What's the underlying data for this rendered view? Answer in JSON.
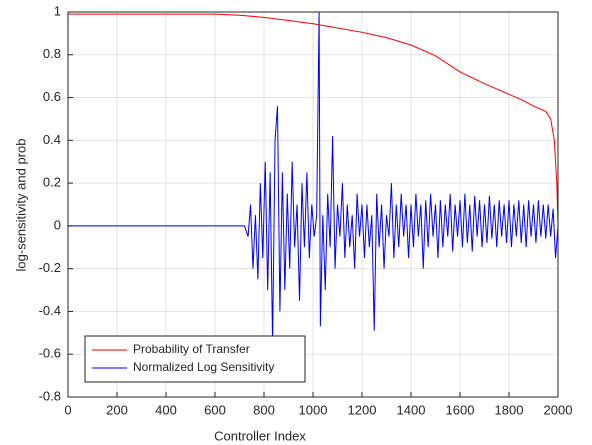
{
  "chart_data": {
    "type": "line",
    "xlabel": "Controller Index",
    "ylabel": "log-sensitivity and prob",
    "xlim": [
      0,
      2000
    ],
    "ylim": [
      -0.8,
      1
    ],
    "xticks": [
      0,
      200,
      400,
      600,
      800,
      1000,
      1200,
      1400,
      1600,
      1800,
      2000
    ],
    "yticks": [
      -0.8,
      -0.6,
      -0.4,
      -0.2,
      0,
      0.2,
      0.4,
      0.6,
      0.8,
      1
    ],
    "grid": true,
    "legend": "lower left",
    "series": [
      {
        "name": "Probability of Transfer",
        "color": "#ff0000",
        "x": [
          0,
          100,
          200,
          300,
          400,
          500,
          600,
          700,
          800,
          900,
          1000,
          1100,
          1200,
          1300,
          1400,
          1500,
          1600,
          1700,
          1800,
          1850,
          1900,
          1950,
          1970,
          1985,
          1995,
          2000
        ],
        "values": [
          0.99,
          0.99,
          0.99,
          0.99,
          0.99,
          0.99,
          0.99,
          0.985,
          0.975,
          0.96,
          0.945,
          0.925,
          0.905,
          0.88,
          0.845,
          0.795,
          0.72,
          0.665,
          0.615,
          0.59,
          0.56,
          0.535,
          0.5,
          0.4,
          0.2,
          0
        ]
      },
      {
        "name": "Normalized Log Sensitivity",
        "color": "#0000ff",
        "x": [
          0,
          720,
          735,
          745,
          755,
          765,
          775,
          785,
          795,
          805,
          815,
          825,
          835,
          845,
          855,
          865,
          875,
          885,
          895,
          905,
          915,
          925,
          935,
          945,
          955,
          965,
          975,
          985,
          995,
          1005,
          1015,
          1025,
          1030,
          1040,
          1050,
          1060,
          1070,
          1080,
          1090,
          1100,
          1110,
          1120,
          1130,
          1140,
          1150,
          1160,
          1170,
          1180,
          1190,
          1200,
          1210,
          1220,
          1230,
          1240,
          1250,
          1260,
          1270,
          1280,
          1290,
          1300,
          1310,
          1320,
          1330,
          1340,
          1350,
          1360,
          1370,
          1380,
          1390,
          1400,
          1410,
          1420,
          1430,
          1440,
          1450,
          1460,
          1470,
          1480,
          1490,
          1500,
          1510,
          1520,
          1530,
          1540,
          1550,
          1560,
          1570,
          1580,
          1590,
          1600,
          1610,
          1620,
          1630,
          1640,
          1650,
          1660,
          1670,
          1680,
          1690,
          1700,
          1710,
          1720,
          1730,
          1740,
          1750,
          1760,
          1770,
          1780,
          1790,
          1800,
          1810,
          1820,
          1830,
          1840,
          1850,
          1860,
          1870,
          1880,
          1890,
          1900,
          1910,
          1920,
          1930,
          1940,
          1950,
          1960,
          1970,
          1980,
          1990,
          2000
        ],
        "values": [
          0,
          0,
          -0.05,
          0.1,
          -0.2,
          0.05,
          -0.25,
          0.2,
          -0.15,
          0.3,
          -0.3,
          0.25,
          -0.55,
          0.4,
          0.56,
          -0.4,
          0.25,
          -0.3,
          0.15,
          -0.2,
          0.3,
          -0.1,
          0.1,
          -0.35,
          0.2,
          -0.1,
          0.25,
          -0.15,
          0.1,
          -0.05,
          0.05,
          1.0,
          -0.47,
          0.05,
          -0.3,
          0.15,
          -0.1,
          0.42,
          -0.2,
          0.1,
          -0.05,
          0.2,
          -0.15,
          0.1,
          -0.1,
          0.05,
          -0.2,
          0.15,
          -0.05,
          0.1,
          -0.15,
          0.1,
          -0.1,
          0.05,
          -0.49,
          0.15,
          -0.1,
          0.1,
          -0.2,
          0.05,
          -0.05,
          0.2,
          -0.15,
          0.1,
          -0.1,
          0.15,
          -0.05,
          0.1,
          -0.15,
          0.1,
          -0.1,
          0.15,
          -0.05,
          0.1,
          -0.2,
          0.12,
          -0.1,
          0.15,
          -0.05,
          0.1,
          -0.15,
          0.12,
          -0.1,
          0.1,
          -0.05,
          0.15,
          -0.12,
          0.1,
          -0.05,
          0.12,
          -0.1,
          0.15,
          -0.08,
          0.1,
          -0.12,
          0.14,
          -0.05,
          0.12,
          -0.1,
          0.1,
          -0.08,
          0.14,
          -0.06,
          0.1,
          -0.1,
          0.12,
          -0.05,
          0.1,
          -0.08,
          0.12,
          -0.1,
          0.1,
          -0.05,
          0.12,
          -0.08,
          0.1,
          -0.1,
          0.12,
          -0.05,
          0.1,
          -0.08,
          0.12,
          -0.05,
          0.1,
          -0.06,
          0.1,
          -0.05,
          0.08,
          -0.15,
          0
        ]
      }
    ]
  }
}
